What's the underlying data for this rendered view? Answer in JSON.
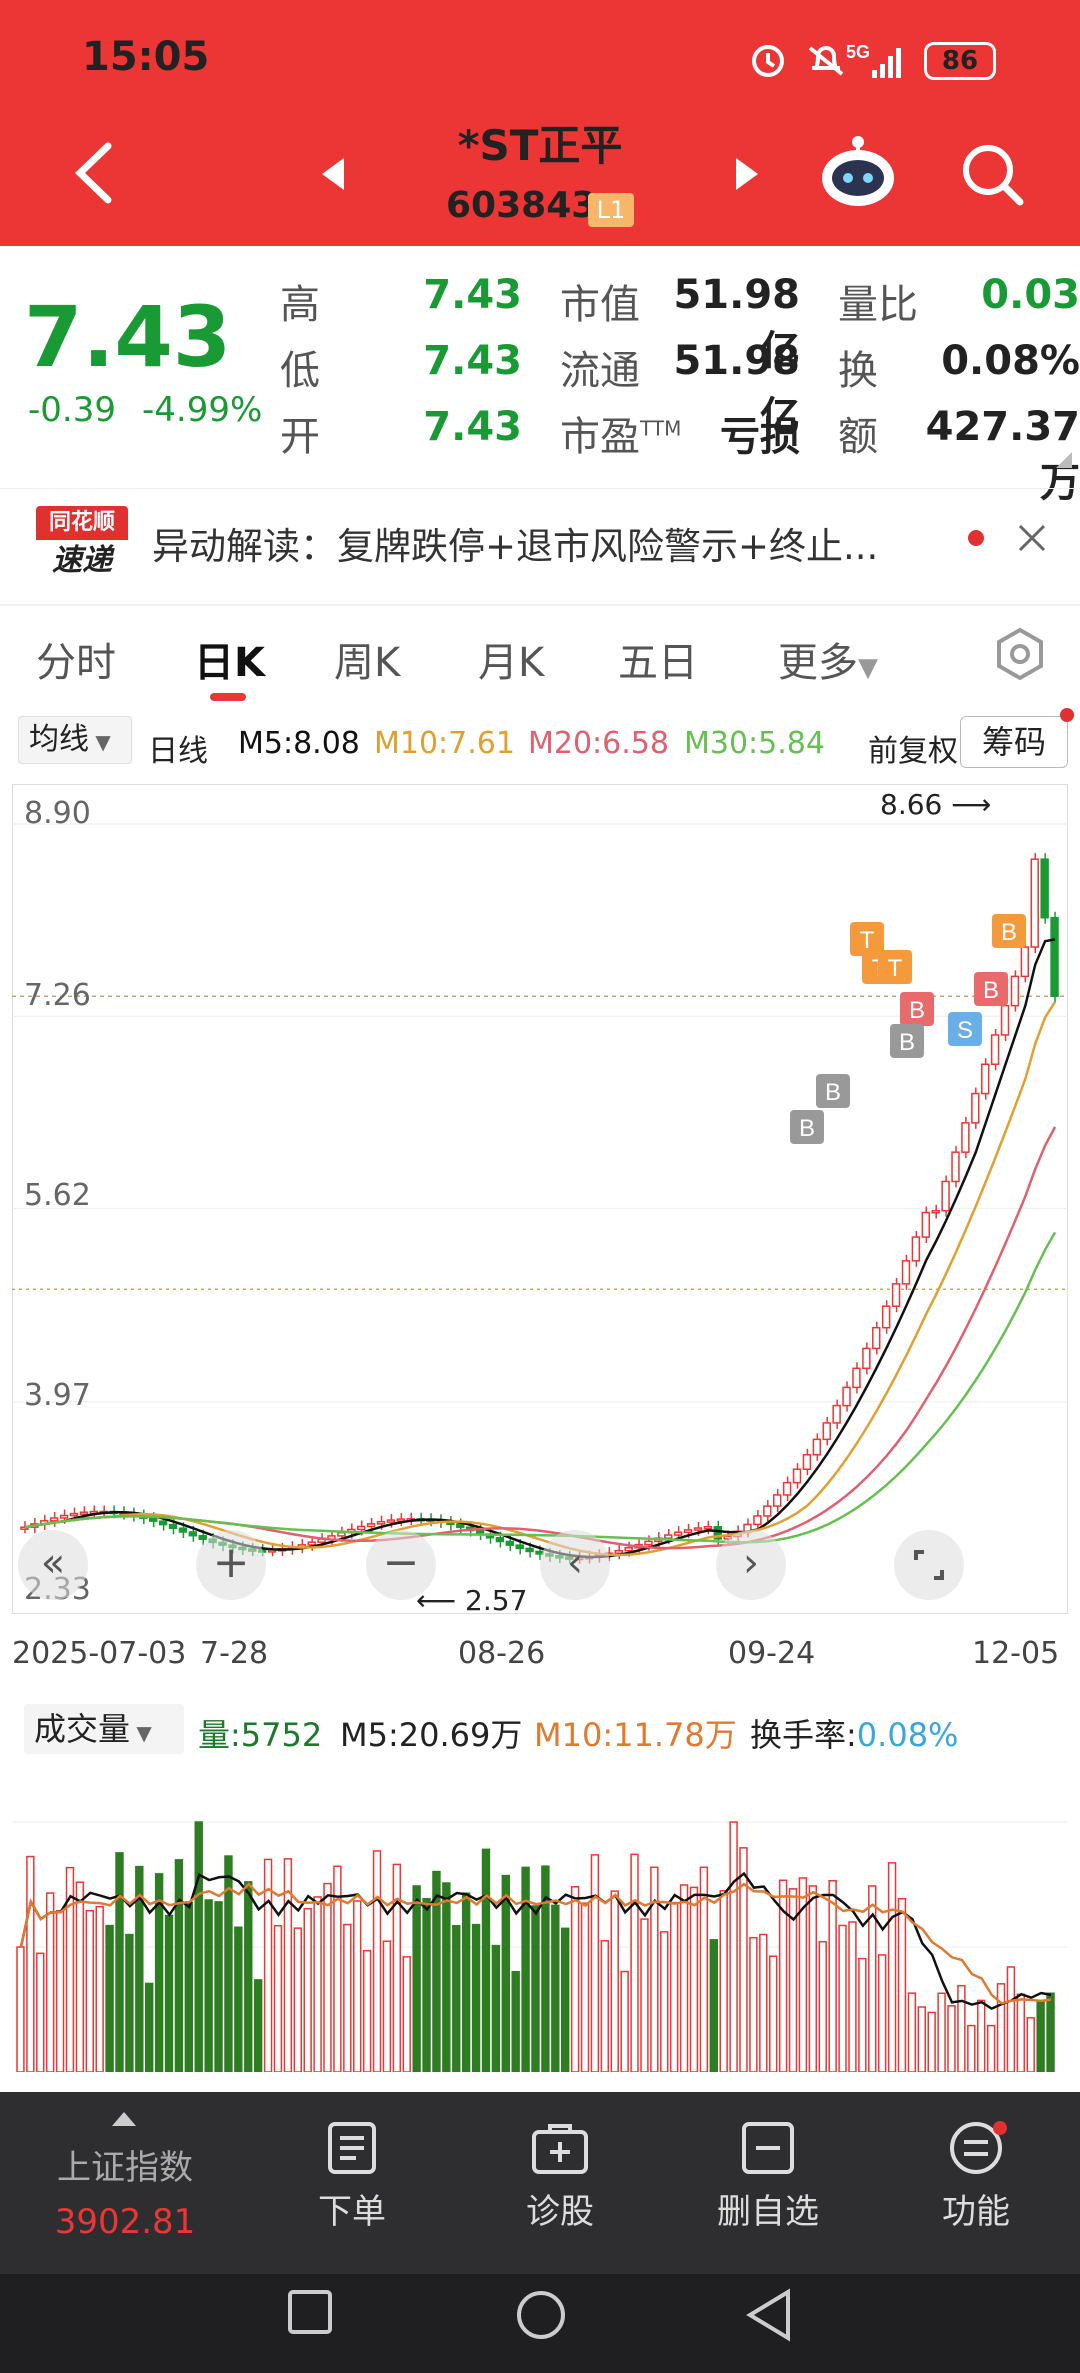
{
  "status_bar": {
    "time": "15:05",
    "network": "5G",
    "battery": "86"
  },
  "header": {
    "title": "*ST正平",
    "code": "603843",
    "level_badge": "L1"
  },
  "quote": {
    "price": "7.43",
    "change": "-0.39",
    "change_pct": "-4.99%",
    "rows": [
      {
        "l1": "高",
        "v1": "7.43",
        "l2": "市值",
        "v2": "51.98亿",
        "l3": "量比",
        "v3": "0.03"
      },
      {
        "l1": "低",
        "v1": "7.43",
        "l2": "流通",
        "v2": "51.98亿",
        "l3": "换",
        "v3": "0.08%"
      },
      {
        "l1": "开",
        "v1": "7.43",
        "l2": "市盈",
        "l2sup": "TTM",
        "v2": "亏损",
        "l3": "额",
        "v3": "427.37万"
      }
    ]
  },
  "news": {
    "logo_top": "同花顺",
    "logo_bottom": "速递",
    "text": "异动解读：复牌跌停+退市风险警示+终止..."
  },
  "tabs": [
    "分时",
    "日K",
    "周K",
    "月K",
    "五日",
    "更多"
  ],
  "ma_bar": {
    "ma_select": "均线",
    "period": "日线",
    "m5": "M5:8.08",
    "m10": "M10:7.61",
    "m20": "M20:6.58",
    "m30": "M30:5.84",
    "adjust": "前复权",
    "chips": "筹码"
  },
  "kline": {
    "y_labels": [
      "8.90",
      "7.26",
      "5.62",
      "3.97",
      "2.33"
    ],
    "high_label": "8.66",
    "low_label": "2.57",
    "dates": [
      "2025-07-03",
      "7-28",
      "08-26",
      "09-24",
      "12-05"
    ],
    "signals": [
      "T",
      "T",
      "T",
      "S",
      "B",
      "B",
      "B",
      "B",
      "B",
      "B"
    ]
  },
  "volume": {
    "select": "成交量",
    "vol": "量:5752",
    "m5": "M5:20.69万",
    "m10": "M10:11.78万",
    "turnover_label": "换手率:",
    "turnover_value": "0.08%"
  },
  "colors": {
    "red": "#ec3535",
    "green": "#1a9a34",
    "m5": "#111111",
    "m10": "#e0a030",
    "m20": "#e06070",
    "m30": "#66c050"
  },
  "bottom_nav": {
    "index_name": "上证指数",
    "index_value": "3902.81",
    "items": [
      "下单",
      "诊股",
      "删自选",
      "功能"
    ]
  },
  "chart_data": {
    "type": "candlestick",
    "title": "",
    "y_ticks": [
      8.9,
      7.26,
      5.62,
      3.97,
      2.33
    ],
    "ylim": [
      2.33,
      8.9
    ],
    "annotated_high": 8.66,
    "annotated_low": 2.57,
    "x_ticks": [
      "2025-07-03",
      "7-28",
      "08-26",
      "09-24",
      "12-05"
    ],
    "series": [
      {
        "name": "M5",
        "last": 8.08
      },
      {
        "name": "M10",
        "last": 7.61
      },
      {
        "name": "M20",
        "last": 6.58
      },
      {
        "name": "M30",
        "last": 5.84
      }
    ]
  }
}
